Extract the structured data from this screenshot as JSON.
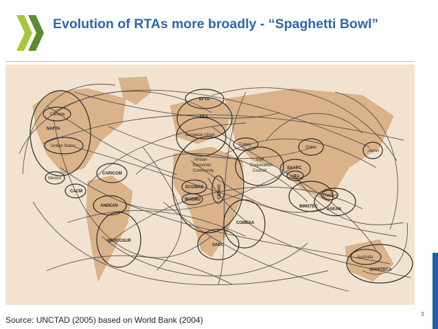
{
  "slide": {
    "title": "Evolution of RTAs more broadly - “Spaghetti Bowl”",
    "source": "Source: UNCTAD (2005) based on World Bank (2004)",
    "page_number": "3",
    "brand_color": "#2e67a6",
    "accent_color": "#1f5fa8",
    "logo_colors": [
      "#a6c739",
      "#5b8c2e"
    ]
  },
  "map": {
    "background": "#f1e3cf",
    "land_color": "#dbb38a",
    "line_color": "#3a3a3a",
    "labels": {
      "canada": "Canada",
      "nafta": "NAFTA",
      "united_states": "United States",
      "mexico": "Mexico",
      "caricom": "CARICOM",
      "cacm": "CACM",
      "andean": "ANDEAN",
      "mercosur": "MERCOSUR",
      "efta": "EFTA",
      "eea": "EEA",
      "european_union": "European Union",
      "turkey": "Turkey",
      "african_economic_community": [
        "African",
        "Economic",
        "Community"
      ],
      "ecowas": "ECOWAS",
      "waemu": "WAEMU",
      "cemac": "CEMAC",
      "comesa": "COMESA",
      "sadc": "SADC",
      "gulf_cooperation_council": [
        "Gulf",
        "Cooperation",
        "Council"
      ],
      "saarc": "SAARC",
      "india": "India",
      "bimstec": "BIMSTEC",
      "asean": "ASEAN",
      "thailand": "Thailand",
      "china": "China",
      "japan": "Japan",
      "australia": "Australia",
      "sparteca": "SPARTECA"
    }
  }
}
